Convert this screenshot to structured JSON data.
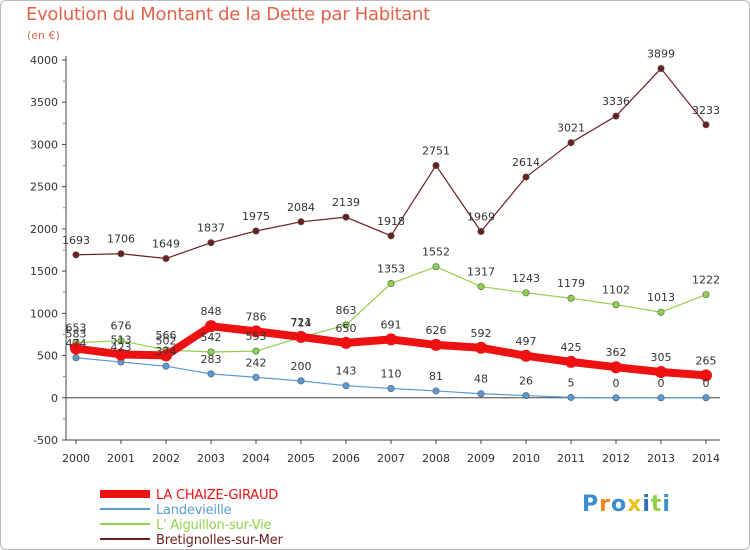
{
  "title": "Evolution du Montant de la Dette par Habitant",
  "unit_label": "(en €)",
  "logo_text": "Proxiti",
  "chart_data": {
    "type": "line",
    "x": [
      "2000",
      "2001",
      "2002",
      "2003",
      "2004",
      "2005",
      "2006",
      "2007",
      "2008",
      "2009",
      "2010",
      "2011",
      "2012",
      "2013",
      "2014"
    ],
    "ylim": [
      -500,
      4000
    ],
    "yticks": [
      -500,
      0,
      500,
      1000,
      1500,
      2000,
      2500,
      3000,
      3500,
      4000
    ],
    "grid": false,
    "legend_position": "bottom-left",
    "series": [
      {
        "name": "LA CHAIZE-GIRAUD",
        "color": "#ee1111",
        "values": [
          583,
          513,
          502,
          848,
          786,
          721,
          650,
          691,
          626,
          592,
          497,
          425,
          362,
          305,
          265
        ]
      },
      {
        "name": "Landevieille",
        "color": "#5b9bd5",
        "values": [
          474,
          423,
          374,
          283,
          242,
          200,
          143,
          110,
          81,
          48,
          26,
          5,
          0,
          0,
          0
        ]
      },
      {
        "name": "L' Aiguillon-sur-Vie",
        "color": "#8fd24a",
        "values": [
          653,
          676,
          566,
          542,
          553,
          714,
          863,
          1353,
          1552,
          1317,
          1243,
          1179,
          1102,
          1013,
          1222
        ]
      },
      {
        "name": "Bretignolles-sur-Mer",
        "color": "#6b1f1f",
        "values": [
          1693,
          1706,
          1649,
          1837,
          1975,
          2084,
          2139,
          1918,
          2751,
          1969,
          2614,
          3021,
          3336,
          3899,
          3233
        ]
      }
    ]
  }
}
